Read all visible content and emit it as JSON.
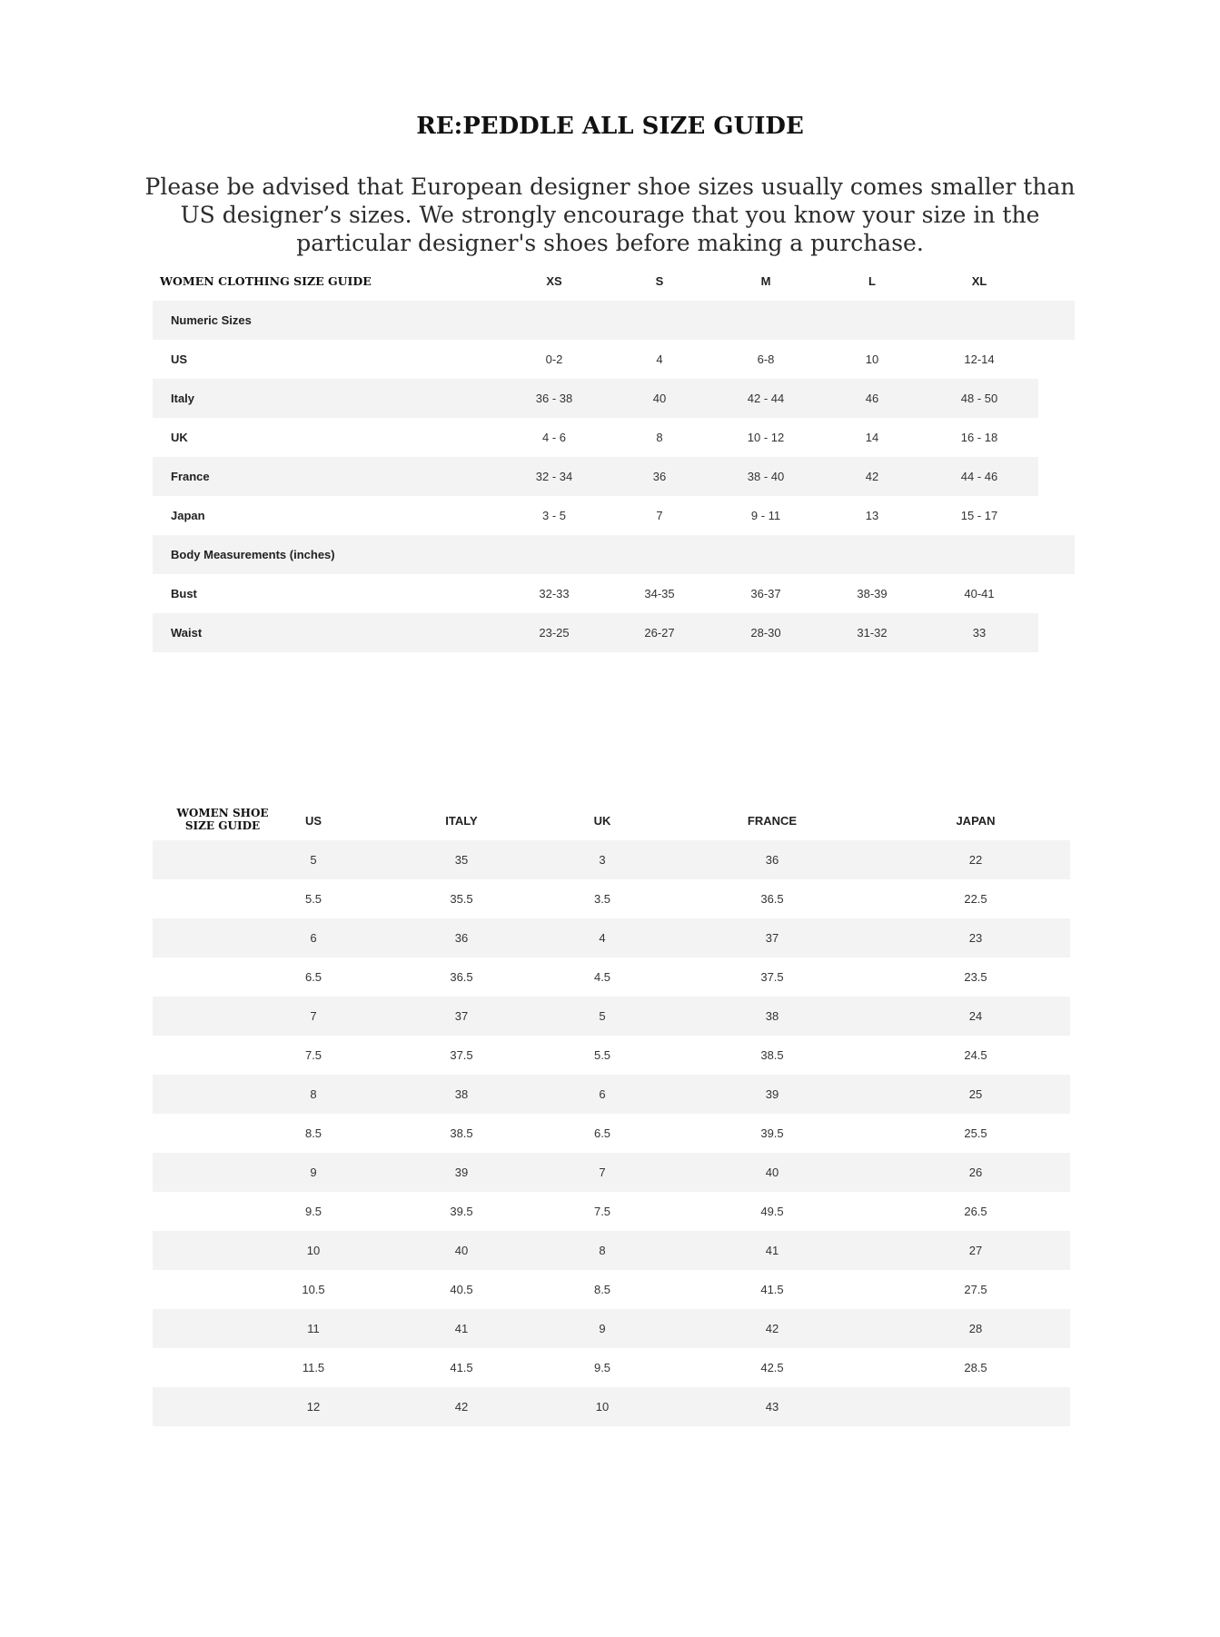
{
  "title": "RE:PEDDLE ALL SIZE GUIDE",
  "notice": "Please be advised that European designer shoe sizes usually comes smaller than US designer’s sizes. We strongly encourage that you know your size in the particular designer's shoes before making a purchase.",
  "clothing": {
    "heading": "WOMEN CLOTHING SIZE GUIDE",
    "columns": [
      "XS",
      "S",
      "M",
      "L",
      "XL"
    ],
    "rows": [
      {
        "label": "Numeric Sizes",
        "values": [
          "",
          "",
          "",
          "",
          ""
        ]
      },
      {
        "label": "US",
        "values": [
          "0-2",
          "4",
          "6-8",
          "10",
          "12-14"
        ]
      },
      {
        "label": "Italy",
        "values": [
          "36 - 38",
          "40",
          "42 - 44",
          "46",
          "48 - 50"
        ]
      },
      {
        "label": "UK",
        "values": [
          "4 - 6",
          "8",
          "10 - 12",
          "14",
          "16 - 18"
        ]
      },
      {
        "label": "France",
        "values": [
          "32 - 34",
          "36",
          "38 - 40",
          "42",
          "44 - 46"
        ]
      },
      {
        "label": "Japan",
        "values": [
          "3 - 5",
          "7",
          "9 - 11",
          "13",
          "15 - 17"
        ]
      },
      {
        "label": "Body Measurements (inches)",
        "values": [
          "",
          "",
          "",
          "",
          ""
        ]
      },
      {
        "label": "Bust",
        "values": [
          "32-33",
          "34-35",
          "36-37",
          "38-39",
          "40-41"
        ]
      },
      {
        "label": "Waist",
        "values": [
          "23-25",
          "26-27",
          "28-30",
          "31-32",
          "33"
        ]
      }
    ]
  },
  "shoes": {
    "heading_line1": "WOMEN SHOE",
    "heading_line2": "SIZE GUIDE",
    "columns": [
      "US",
      "ITALY",
      "UK",
      "FRANCE",
      "JAPAN"
    ],
    "rows": [
      [
        "5",
        "35",
        "3",
        "36",
        "22"
      ],
      [
        "5.5",
        "35.5",
        "3.5",
        "36.5",
        "22.5"
      ],
      [
        "6",
        "36",
        "4",
        "37",
        "23"
      ],
      [
        "6.5",
        "36.5",
        "4.5",
        "37.5",
        "23.5"
      ],
      [
        "7",
        "37",
        "5",
        "38",
        "24"
      ],
      [
        "7.5",
        "37.5",
        "5.5",
        "38.5",
        "24.5"
      ],
      [
        "8",
        "38",
        "6",
        "39",
        "25"
      ],
      [
        "8.5",
        "38.5",
        "6.5",
        "39.5",
        "25.5"
      ],
      [
        "9",
        "39",
        "7",
        "40",
        "26"
      ],
      [
        "9.5",
        "39.5",
        "7.5",
        "49.5",
        "26.5"
      ],
      [
        "10",
        "40",
        "8",
        "41",
        "27"
      ],
      [
        "10.5",
        "40.5",
        "8.5",
        "41.5",
        "27.5"
      ],
      [
        "11",
        "41",
        "9",
        "42",
        "28"
      ],
      [
        "11.5",
        "41.5",
        "9.5",
        "42.5",
        "28.5"
      ],
      [
        "12",
        "42",
        "10",
        "43",
        ""
      ]
    ]
  },
  "colors": {
    "row_shade": "#f3f3f3",
    "text": "#222222"
  }
}
